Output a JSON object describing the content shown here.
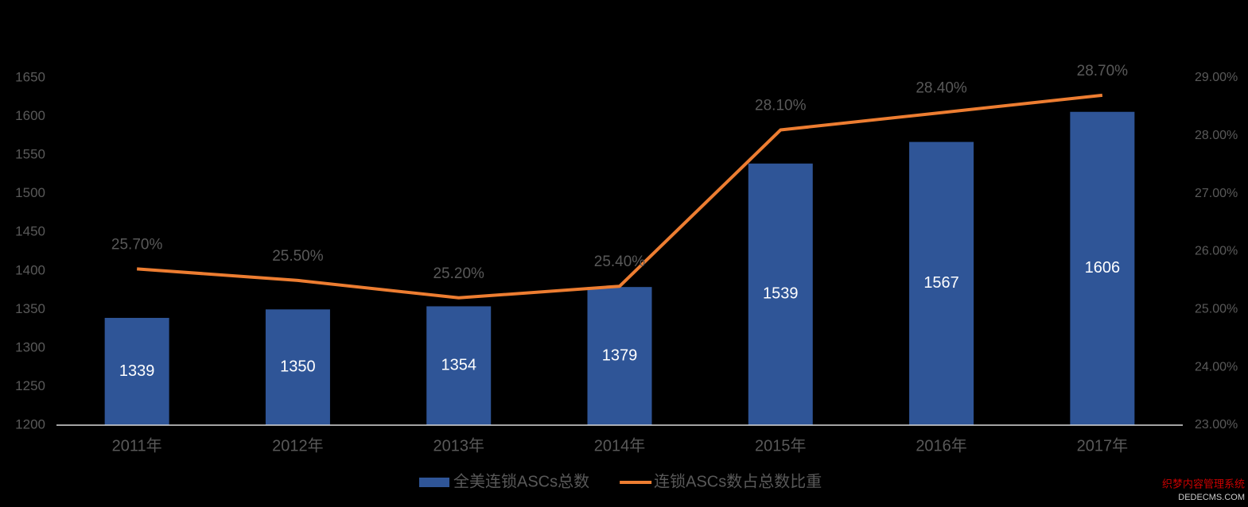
{
  "chart_data": {
    "type": "bar-line",
    "categories": [
      "2011年",
      "2012年",
      "2013年",
      "2014年",
      "2015年",
      "2016年",
      "2017年"
    ],
    "series": [
      {
        "name": "全美连锁ASCs总数",
        "type": "bar",
        "color": "#2f5597",
        "values": [
          1339,
          1350,
          1354,
          1379,
          1539,
          1567,
          1606
        ]
      },
      {
        "name": "连锁ASCs数占总数比重",
        "type": "line",
        "axis": "y2",
        "color": "#ed7d31",
        "values": [
          25.7,
          25.5,
          25.2,
          25.4,
          28.1,
          28.4,
          28.7
        ],
        "value_labels": [
          "25.70%",
          "25.50%",
          "25.20%",
          "25.40%",
          "28.10%",
          "28.40%",
          "28.70%"
        ]
      }
    ],
    "ylim": [
      1200,
      1650
    ],
    "yticks": [
      1200,
      1250,
      1300,
      1350,
      1400,
      1450,
      1500,
      1550,
      1600,
      1650
    ],
    "y2lim": [
      23,
      29
    ],
    "y2ticks": [
      {
        "value": 23,
        "label": "23.00%"
      },
      {
        "value": 24,
        "label": "24.00%"
      },
      {
        "value": 25,
        "label": "25.00%"
      },
      {
        "value": 26,
        "label": "26.00%"
      },
      {
        "value": 27,
        "label": "27.00%"
      },
      {
        "value": 28,
        "label": "28.00%"
      },
      {
        "value": 29,
        "label": "29.00%"
      }
    ],
    "legend": "bottom",
    "watermark": [
      "织梦内容管理系统",
      "DEDECMS.COM"
    ]
  }
}
